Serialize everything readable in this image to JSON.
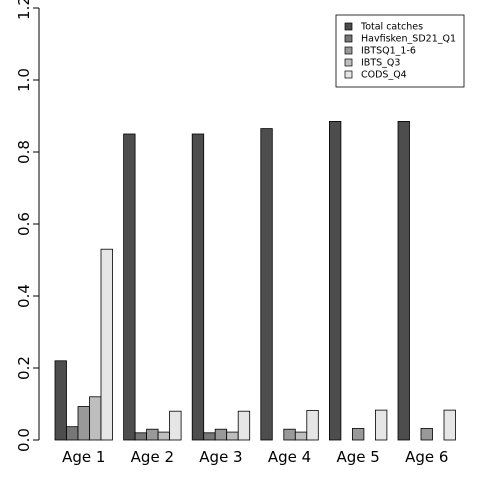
{
  "chart_data": {
    "type": "bar",
    "title": "",
    "xlabel": "",
    "ylabel": "",
    "ylim": [
      0,
      1.2
    ],
    "yticks": [
      "0.0",
      "0.2",
      "0.4",
      "0.6",
      "0.8",
      "1.0",
      "1.2"
    ],
    "categories": [
      "Age 1",
      "Age 2",
      "Age 3",
      "Age 4",
      "Age 5",
      "Age 6"
    ],
    "legend_position": "top-right",
    "grid": false,
    "series": [
      {
        "name": "Total catches",
        "color": "#4d4d4d",
        "values": [
          0.22,
          0.85,
          0.85,
          0.865,
          0.885,
          0.885
        ]
      },
      {
        "name": "Havfisken_SD21_Q1",
        "color": "#777777",
        "values": [
          0.037,
          0.02,
          0.02,
          0,
          0,
          0
        ]
      },
      {
        "name": "IBTSQ1_1-6",
        "color": "#999999",
        "values": [
          0.093,
          0.03,
          0.03,
          0.03,
          0.032,
          0.032
        ]
      },
      {
        "name": "IBTS_Q3",
        "color": "#bebebe",
        "values": [
          0.12,
          0.022,
          0.022,
          0.022,
          0,
          0
        ]
      },
      {
        "name": "CODS_Q4",
        "color": "#e6e6e6",
        "values": [
          0.53,
          0.08,
          0.08,
          0.082,
          0.083,
          0.083
        ]
      }
    ]
  }
}
